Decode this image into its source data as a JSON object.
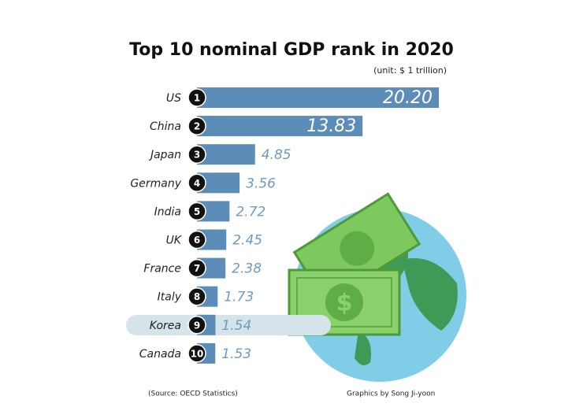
{
  "chart_data": {
    "type": "bar",
    "orientation": "horizontal",
    "title": "Top 10 nominal GDP rank in 2020",
    "subtitle": "(unit: $ 1 trillion)",
    "categories": [
      "US",
      "China",
      "Japan",
      "Germany",
      "India",
      "UK",
      "France",
      "Italy",
      "Korea",
      "Canada"
    ],
    "ranks": [
      "1",
      "2",
      "3",
      "4",
      "5",
      "6",
      "7",
      "8",
      "9",
      "10"
    ],
    "values": [
      20.2,
      13.83,
      4.85,
      3.56,
      2.72,
      2.45,
      2.38,
      1.73,
      1.54,
      1.53
    ],
    "value_labels": [
      "20.20",
      "13.83",
      "4.85",
      "3.56",
      "2.72",
      "2.45",
      "2.38",
      "1.73",
      "1.54",
      "1.53"
    ],
    "color": "#5b8db8",
    "source": "(Source: OECD Statistics)",
    "credit": "Graphics by Song Ji-yoon"
  }
}
